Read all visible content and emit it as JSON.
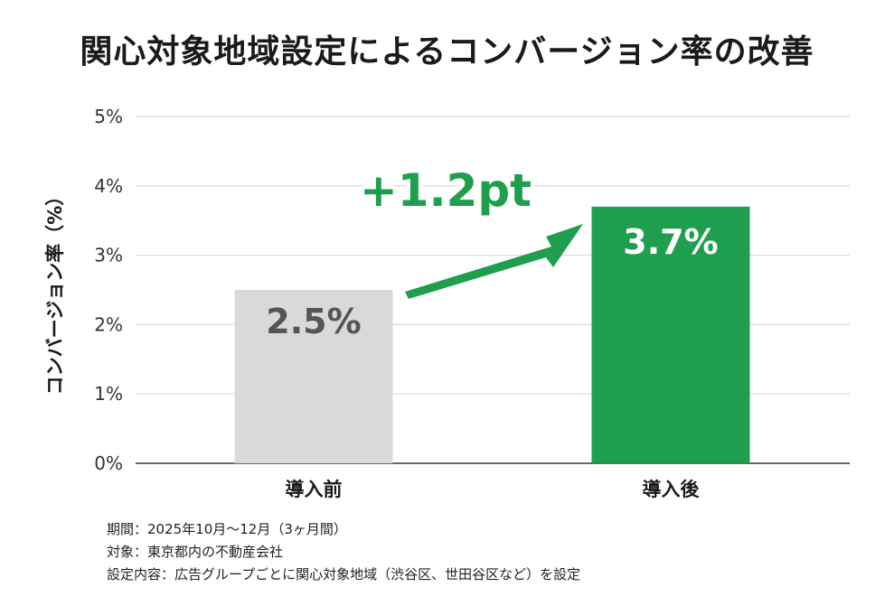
{
  "chart_data": {
    "type": "bar",
    "title": "関心対象地域設定によるコンバージョン率の改善",
    "ylabel": "コンバージョン率（%）",
    "xlabel": "",
    "categories": [
      "導入前",
      "導入後"
    ],
    "values": [
      2.5,
      3.7
    ],
    "value_labels": [
      "2.5%",
      "3.7%"
    ],
    "bar_colors": [
      "#d9d9d9",
      "#1f9e4e"
    ],
    "value_label_colors": [
      "#555555",
      "#ffffff"
    ],
    "ylim": [
      0,
      5
    ],
    "yticks": [
      0,
      1,
      2,
      3,
      4,
      5
    ],
    "ytick_labels": [
      "0%",
      "1%",
      "2%",
      "3%",
      "4%",
      "5%"
    ],
    "grid": true,
    "annotation": {
      "text": "+1.2pt",
      "color": "#1f9e4e"
    }
  },
  "notes": [
    "期間：2025年10月〜12月（3ヶ月間）",
    "対象：東京都内の不動産会社",
    "設定内容：広告グループごとに関心対象地域（渋谷区、世田谷区など）を設定"
  ]
}
